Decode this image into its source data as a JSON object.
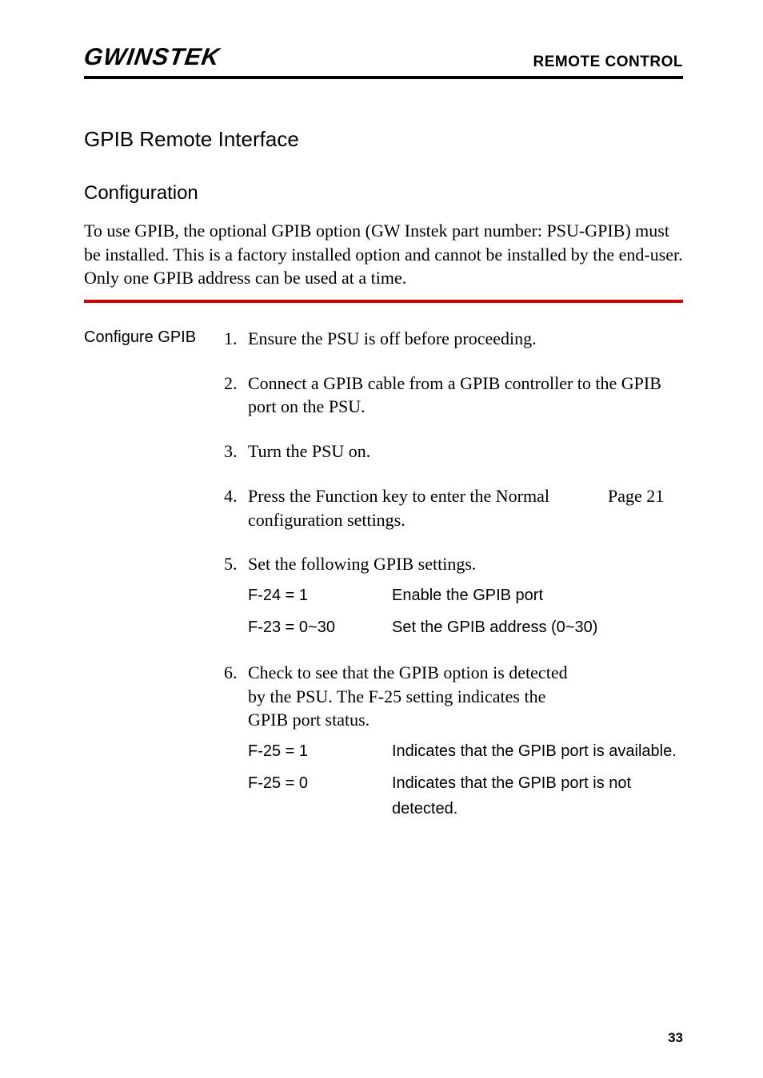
{
  "header": {
    "logo_text": "GWINSTEK",
    "right_text": "REMOTE CONTROL"
  },
  "section": {
    "h1": "GPIB Remote Interface",
    "h2": "Configuration",
    "intro": "To use GPIB, the optional GPIB option (GW Instek part number: PSU-GPIB) must be installed. This is a factory installed option and cannot be installed by the end-user. Only one GPIB address can be used at a time."
  },
  "left_label": "Configure GPIB",
  "steps": [
    {
      "num": "1.",
      "text": "Ensure the PSU is off before proceeding.",
      "ref": ""
    },
    {
      "num": "2.",
      "text": "Connect a GPIB cable from a GPIB controller to the GPIB port on the PSU.",
      "ref": ""
    },
    {
      "num": "3.",
      "text": "Turn the PSU on.",
      "ref": ""
    },
    {
      "num": "4.",
      "text": "Press the Function key to enter the Normal configuration settings.",
      "ref": "Page  21"
    },
    {
      "num": "5.",
      "text": "Set the following GPIB settings.",
      "ref": "",
      "settings": [
        {
          "key": "F-24 = 1",
          "desc": "Enable the GPIB port"
        },
        {
          "key": "F-23 = 0~30",
          "desc": "Set the GPIB address (0~30)"
        }
      ]
    },
    {
      "num": "6.",
      "text": "Check to see that the GPIB option is detected by the PSU. The F-25 setting indicates the GPIB port status.",
      "ref": "",
      "settings": [
        {
          "key": "F-25 = 1",
          "desc": "Indicates that the GPIB port is available."
        },
        {
          "key": "F-25 = 0",
          "desc": "Indicates that the GPIB port is not detected."
        }
      ]
    }
  ],
  "page_number": "33",
  "colors": {
    "red_hr": "#cc0000"
  }
}
